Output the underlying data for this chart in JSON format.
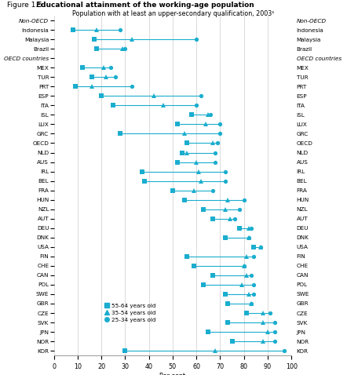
{
  "title_prefix": "Figure 1.5. ",
  "title_bold": "Educational attainment of the working-age population",
  "subtitle": "Population with at least an upper-secondary qualification, 2003¹",
  "xlabel": "Per cent",
  "color": "#1AADCE",
  "countries": [
    "Non-OECD",
    "Indonesia",
    "Malaysia",
    "Brazil",
    "OECD countries",
    "MEX",
    "TUR",
    "PRT",
    "ESP",
    "ITA",
    "ISL",
    "LUX",
    "GRC",
    "OECD",
    "NLD",
    "AUS",
    "IRL",
    "BEL",
    "FRA",
    "HUN",
    "NZL",
    "AUT",
    "DEU",
    "DNK",
    "USA",
    "FIN",
    "CHE",
    "CAN",
    "POL",
    "SWE",
    "GBR",
    "CZE",
    "SVK",
    "JPN",
    "NOR",
    "KOR"
  ],
  "sq": [
    null,
    8,
    17,
    18,
    null,
    12,
    16,
    9,
    20,
    25,
    58,
    52,
    28,
    56,
    54,
    52,
    37,
    38,
    50,
    55,
    63,
    67,
    78,
    72,
    84,
    56,
    59,
    67,
    63,
    72,
    73,
    81,
    73,
    65,
    75,
    30
  ],
  "tr": [
    null,
    18,
    33,
    29,
    null,
    21,
    22,
    16,
    42,
    46,
    65,
    64,
    55,
    67,
    56,
    60,
    61,
    62,
    59,
    73,
    72,
    74,
    82,
    82,
    87,
    81,
    80,
    81,
    79,
    82,
    83,
    88,
    88,
    90,
    88,
    68
  ],
  "ci": [
    null,
    28,
    60,
    30,
    null,
    24,
    26,
    33,
    62,
    60,
    66,
    70,
    70,
    69,
    68,
    68,
    72,
    72,
    67,
    80,
    78,
    76,
    83,
    82,
    87,
    84,
    80,
    83,
    84,
    84,
    83,
    91,
    93,
    93,
    93,
    97
  ],
  "header_rows": [
    0,
    4
  ],
  "xlim": [
    0,
    100
  ],
  "xticks": [
    0,
    10,
    20,
    30,
    40,
    50,
    60,
    70,
    80,
    90,
    100
  ],
  "figsize": [
    4.42,
    4.78
  ],
  "dpi": 100
}
